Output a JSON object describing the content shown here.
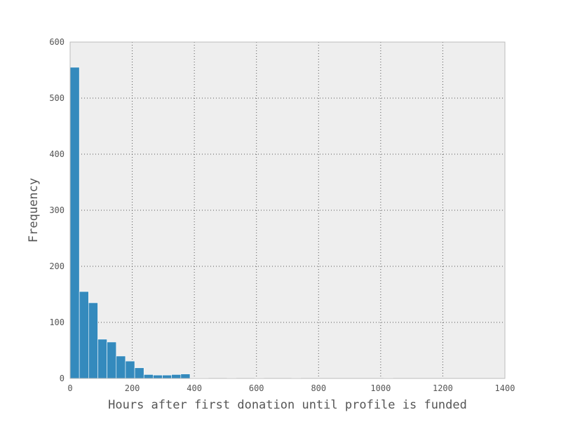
{
  "chart_data": {
    "type": "bar",
    "title": "",
    "xlabel": "Hours after first donation until profile is funded",
    "ylabel": "Frequency",
    "xlim": [
      0,
      1400
    ],
    "ylim": [
      0,
      600
    ],
    "xticks": [
      "0",
      "200",
      "400",
      "600",
      "800",
      "1000",
      "1200",
      "1400"
    ],
    "yticks": [
      "0",
      "100",
      "200",
      "300",
      "400",
      "500",
      "600"
    ],
    "grid": true,
    "bar_color": "#348abd",
    "background_color": "#eeeeee",
    "bin_width": 29.7,
    "bin_start": 0,
    "values": [
      555,
      155,
      135,
      70,
      65,
      40,
      31,
      19,
      7,
      6,
      6,
      7,
      8,
      1,
      1,
      0,
      0,
      1,
      0,
      0,
      1,
      0,
      0,
      0,
      1,
      0,
      0,
      0,
      0,
      0,
      0,
      0,
      0,
      0,
      1,
      0,
      0,
      0,
      0,
      0,
      0,
      0,
      0,
      0,
      0
    ]
  }
}
